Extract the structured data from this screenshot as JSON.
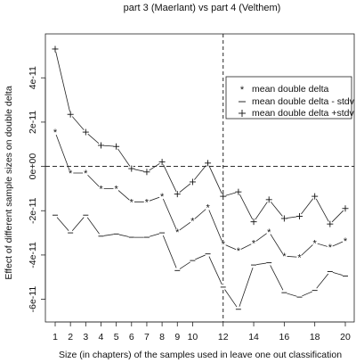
{
  "chart_data": {
    "type": "line",
    "title": "part 3 (Maerlant) vs part 4 (Velthem)",
    "xlabel": "Size (in chapters) of the samples used in leave one out classification",
    "ylabel": "Effect of different sample sizes on double delta",
    "xlim": [
      1,
      20
    ],
    "ylim": [
      -6.5e-11,
      5.5e-11
    ],
    "x_ticks": [
      1,
      2,
      3,
      4,
      5,
      6,
      7,
      8,
      9,
      10,
      12,
      14,
      16,
      18,
      20
    ],
    "x_tick_labels": [
      "1",
      "2",
      "3",
      "4",
      "5",
      "6",
      "7",
      "8",
      "9",
      "10",
      "12",
      "14",
      "16",
      "18",
      "20"
    ],
    "y_ticks": [
      -6e-11,
      -4e-11,
      -2e-11,
      0,
      2e-11,
      4e-11
    ],
    "y_tick_labels": [
      "-6e-11",
      "-4e-11",
      "-2e-11",
      "0e+00",
      "2e-11",
      "4e-11"
    ],
    "hline": 0,
    "vline": 12,
    "grid": false,
    "legend_position": "top-right",
    "x": [
      1,
      2,
      3,
      4,
      5,
      6,
      7,
      8,
      9,
      10,
      11,
      12,
      13,
      14,
      15,
      16,
      17,
      18,
      19,
      20
    ],
    "series": [
      {
        "name": "mean double delta",
        "marker": "*",
        "values": [
          1.55e-11,
          -3e-12,
          -3e-12,
          -1e-11,
          -1e-11,
          -1.6e-11,
          -1.6e-11,
          -1.35e-11,
          -2.95e-11,
          -2.45e-11,
          -1.85e-11,
          -3.5e-11,
          -3.8e-11,
          -3.45e-11,
          -2.95e-11,
          -4.05e-11,
          -4.1e-11,
          -3.45e-11,
          -3.65e-11,
          -3.35e-11
        ]
      },
      {
        "name": "mean double delta - stdv",
        "marker": "-",
        "values": [
          -2.2e-11,
          -3e-11,
          -2.2e-11,
          -3.15e-11,
          -3.05e-11,
          -3.2e-11,
          -3.2e-11,
          -3e-11,
          -4.7e-11,
          -4.25e-11,
          -3.95e-11,
          -5.45e-11,
          -6.45e-11,
          -4.45e-11,
          -4.35e-11,
          -5.7e-11,
          -5.9e-11,
          -5.6e-11,
          -4.75e-11,
          -4.95e-11
        ]
      },
      {
        "name": "mean double delta +stdv",
        "marker": "+",
        "values": [
          5.3e-11,
          2.35e-11,
          1.55e-11,
          9.5e-12,
          9e-12,
          -1e-12,
          -2.5e-12,
          2e-12,
          -1.25e-11,
          -7e-12,
          1.5e-12,
          -1.35e-11,
          -1.15e-11,
          -2.5e-11,
          -1.5e-11,
          -2.35e-11,
          -2.25e-11,
          -1.35e-11,
          -2.6e-11,
          -1.9e-11
        ]
      }
    ]
  }
}
